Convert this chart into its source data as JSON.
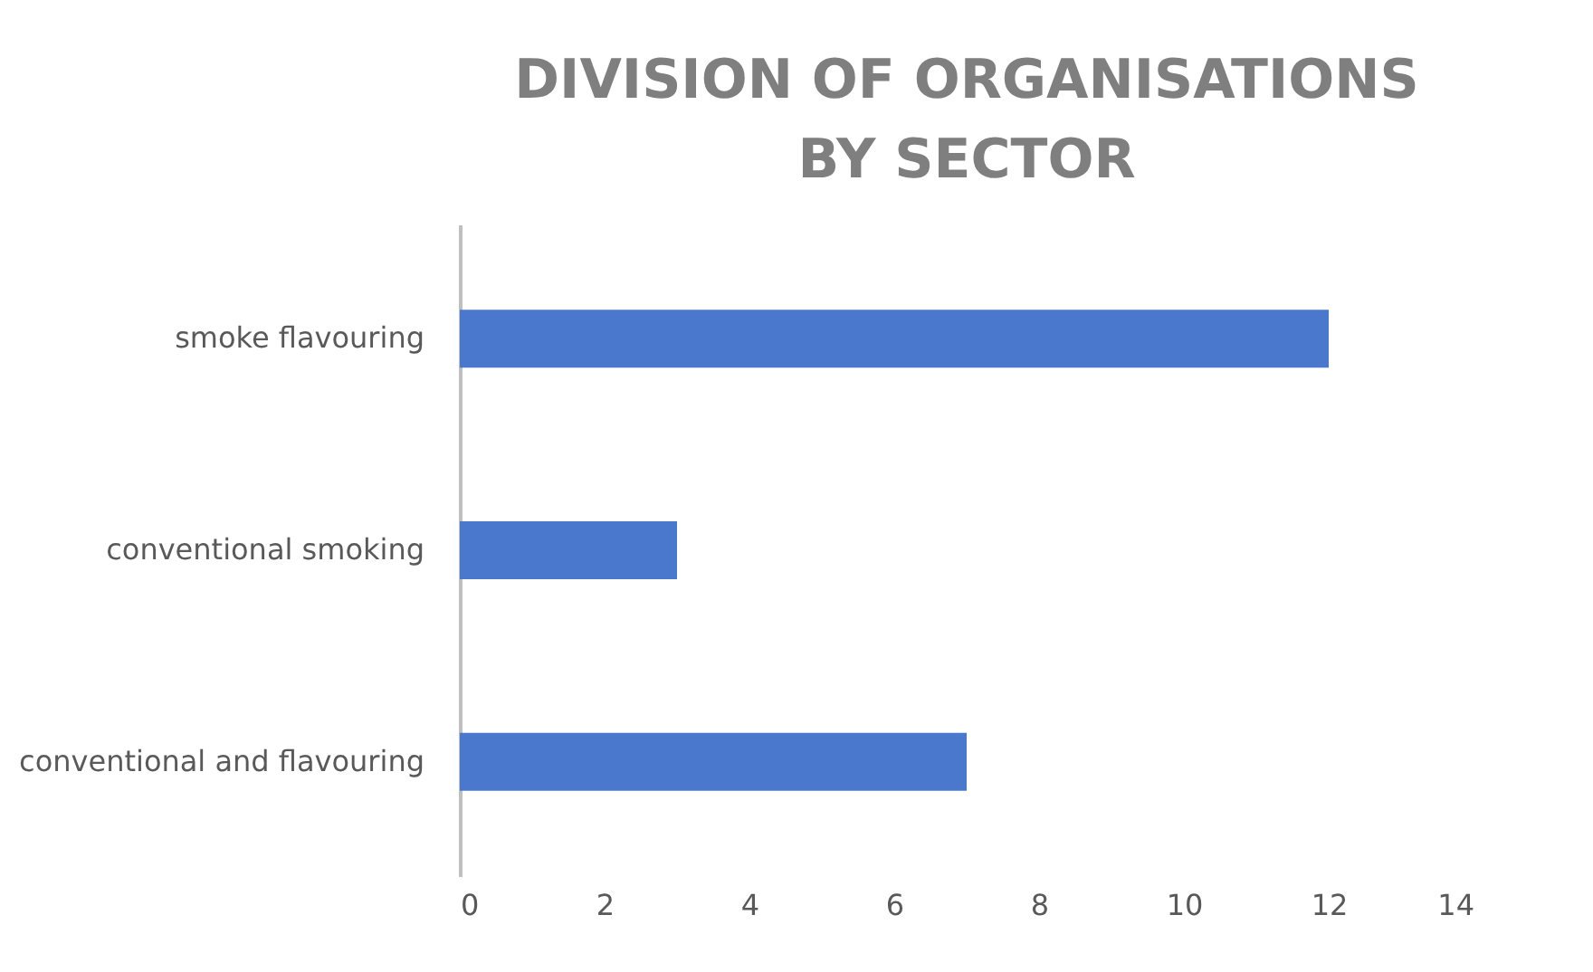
{
  "chart_data": {
    "type": "bar",
    "orientation": "horizontal",
    "title": "DIVISION OF ORGANISATIONS BY SECTOR",
    "categories": [
      "smoke flavouring",
      "conventional smoking",
      "conventional and flavouring"
    ],
    "values": [
      12,
      3,
      7
    ],
    "color": "#4a78cc",
    "xlim": [
      0,
      14
    ],
    "xticks": [
      0,
      2,
      4,
      6,
      8,
      10,
      12,
      14
    ],
    "grid": false
  }
}
